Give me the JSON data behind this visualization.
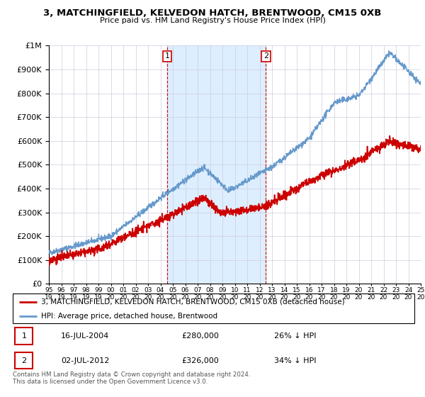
{
  "title": "3, MATCHINGFIELD, KELVEDON HATCH, BRENTWOOD, CM15 0XB",
  "subtitle": "Price paid vs. HM Land Registry's House Price Index (HPI)",
  "legend_line1": "3, MATCHINGFIELD, KELVEDON HATCH, BRENTWOOD, CM15 0XB (detached house)",
  "legend_line2": "HPI: Average price, detached house, Brentwood",
  "annotation1_date": "16-JUL-2004",
  "annotation1_price": "£280,000",
  "annotation1_hpi": "26% ↓ HPI",
  "annotation2_date": "02-JUL-2012",
  "annotation2_price": "£326,000",
  "annotation2_hpi": "34% ↓ HPI",
  "footnote1": "Contains HM Land Registry data © Crown copyright and database right 2024.",
  "footnote2": "This data is licensed under the Open Government Licence v3.0.",
  "price_color": "#cc0000",
  "hpi_color": "#6699cc",
  "shade_color": "#ddeeff",
  "ylim_min": 0,
  "ylim_max": 1000000,
  "yticks": [
    0,
    100000,
    200000,
    300000,
    400000,
    500000,
    600000,
    700000,
    800000,
    900000,
    1000000
  ],
  "ytick_labels": [
    "£0",
    "£100K",
    "£200K",
    "£300K",
    "£400K",
    "£500K",
    "£600K",
    "£700K",
    "£800K",
    "£900K",
    "£1M"
  ],
  "start_year": 1995,
  "end_year": 2025,
  "sale1_year": 2004.54,
  "sale1_price": 280000,
  "sale2_year": 2012.5,
  "sale2_price": 326000
}
